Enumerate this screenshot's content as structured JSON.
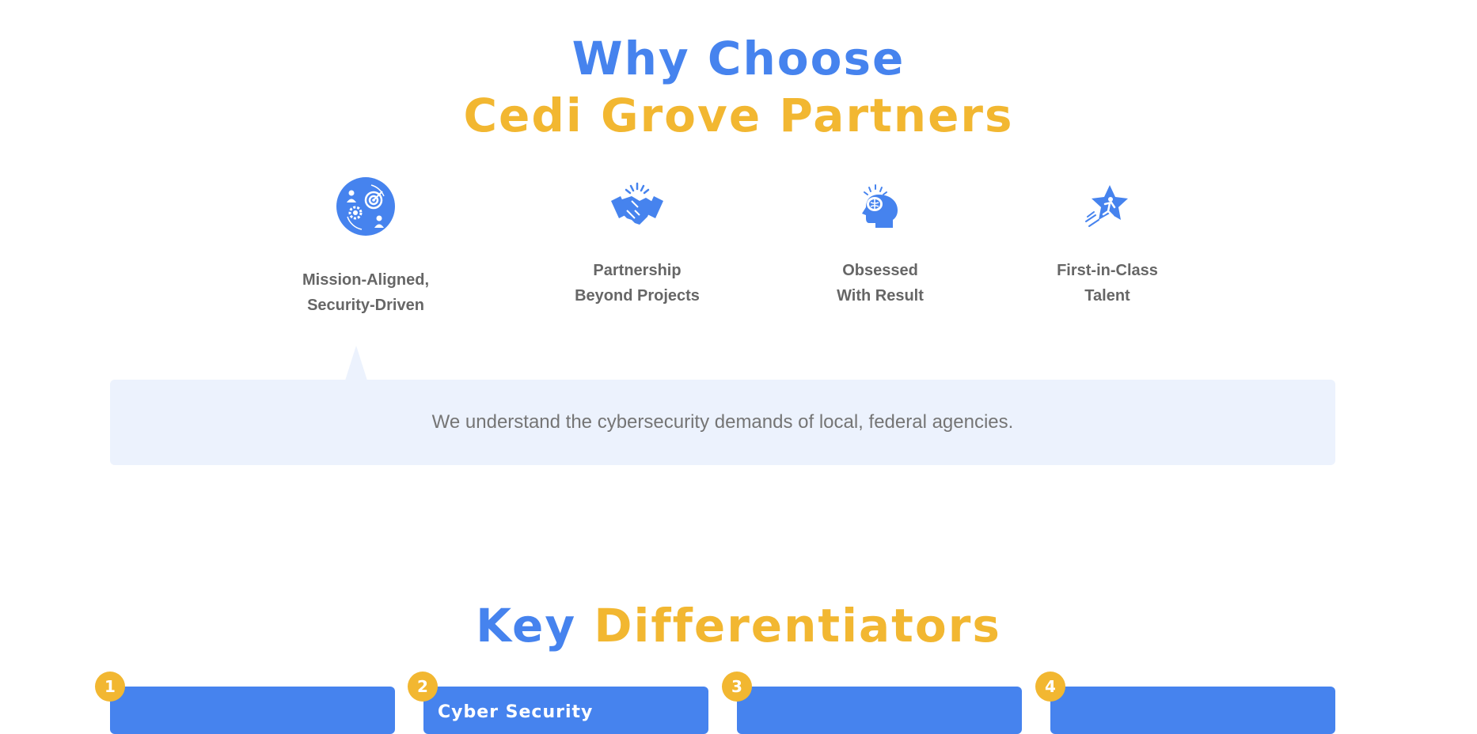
{
  "why": {
    "line1": "Why Choose",
    "line2": "Cedi Grove Partners"
  },
  "features": [
    {
      "label_line1": "Mission-Aligned,",
      "label_line2": "Security-Driven",
      "icon": "mission-target-icon",
      "active": true
    },
    {
      "label_line1": "Partnership",
      "label_line2": "Beyond Projects",
      "icon": "handshake-icon",
      "active": false
    },
    {
      "label_line1": "Obsessed",
      "label_line2": "With Result",
      "icon": "head-brain-icon",
      "active": false
    },
    {
      "label_line1": "First-in-Class",
      "label_line2": "Talent",
      "icon": "star-runner-icon",
      "active": false
    }
  ],
  "panel": {
    "text": "We understand the cybersecurity demands of local, federal agencies."
  },
  "key": {
    "word1": "Key",
    "word2": "Differentiators"
  },
  "cards": [
    {
      "number": "1",
      "title": ""
    },
    {
      "number": "2",
      "title": "Cyber Security"
    },
    {
      "number": "3",
      "title": ""
    },
    {
      "number": "4",
      "title": ""
    }
  ],
  "colors": {
    "primary_blue": "#4683ee",
    "accent_gold": "#f2b731",
    "panel_bg": "#ecf2fd"
  }
}
